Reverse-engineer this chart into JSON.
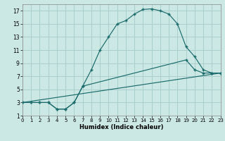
{
  "xlabel": "Humidex (Indice chaleur)",
  "bg_color": "#cce8e4",
  "grid_color": "#aacfcc",
  "line_color": "#1a6b6b",
  "xlim": [
    0,
    23
  ],
  "ylim": [
    1,
    18
  ],
  "xticks": [
    0,
    1,
    2,
    3,
    4,
    5,
    6,
    7,
    8,
    9,
    10,
    11,
    12,
    13,
    14,
    15,
    16,
    17,
    18,
    19,
    20,
    21,
    22,
    23
  ],
  "yticks": [
    1,
    3,
    5,
    7,
    9,
    11,
    13,
    15,
    17
  ],
  "line1_x": [
    0,
    1,
    2,
    3,
    4,
    5,
    6,
    7,
    8,
    9,
    10,
    11,
    12,
    13,
    14,
    15,
    16,
    17,
    18,
    19,
    20,
    21,
    22,
    23
  ],
  "line1_y": [
    3,
    3,
    3,
    3,
    2,
    2,
    3,
    5.5,
    8,
    11,
    13,
    15,
    15.5,
    16.5,
    17.2,
    17.3,
    17,
    16.5,
    15,
    11.5,
    10,
    8,
    7.5,
    7.5
  ],
  "line2_x": [
    0,
    1,
    2,
    3,
    4,
    5,
    6,
    7,
    19,
    20,
    21,
    22,
    23
  ],
  "line2_y": [
    3,
    3,
    3,
    3,
    2,
    2,
    3,
    5.5,
    9.5,
    8,
    7.5,
    7.5,
    7.5
  ],
  "line3_x": [
    0,
    23
  ],
  "line3_y": [
    3,
    7.5
  ]
}
